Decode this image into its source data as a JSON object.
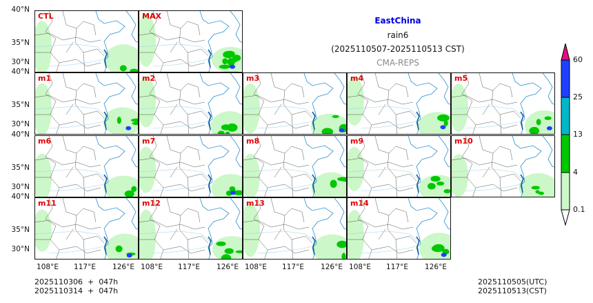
{
  "title": {
    "region": "EastChina",
    "variable": "rain6",
    "period": "(2025110507-2025110513 CST)",
    "model": "CMA-REPS"
  },
  "panels": [
    "CTL",
    "MAX",
    "m1",
    "m2",
    "m3",
    "m4",
    "m5",
    "m6",
    "m7",
    "m8",
    "m9",
    "m10",
    "m11",
    "m12",
    "m13",
    "m14"
  ],
  "y_ticks": [
    "40°N",
    "35°N",
    "30°N"
  ],
  "x_ticks": [
    "108°E",
    "117°E",
    "126°E"
  ],
  "colorbar": {
    "levels": [
      "0.1",
      "4",
      "13",
      "25",
      "60"
    ],
    "colors": [
      "#ccf7c8",
      "#00c800",
      "#00b8c8",
      "#2040ff",
      "#e0107a"
    ]
  },
  "footer_left": {
    "line1": "2025110306  +  047h",
    "line2": "2025110314  +  047h"
  },
  "footer_right": {
    "line1": "2025110505(UTC)",
    "line2": "2025110513(CST)"
  }
}
